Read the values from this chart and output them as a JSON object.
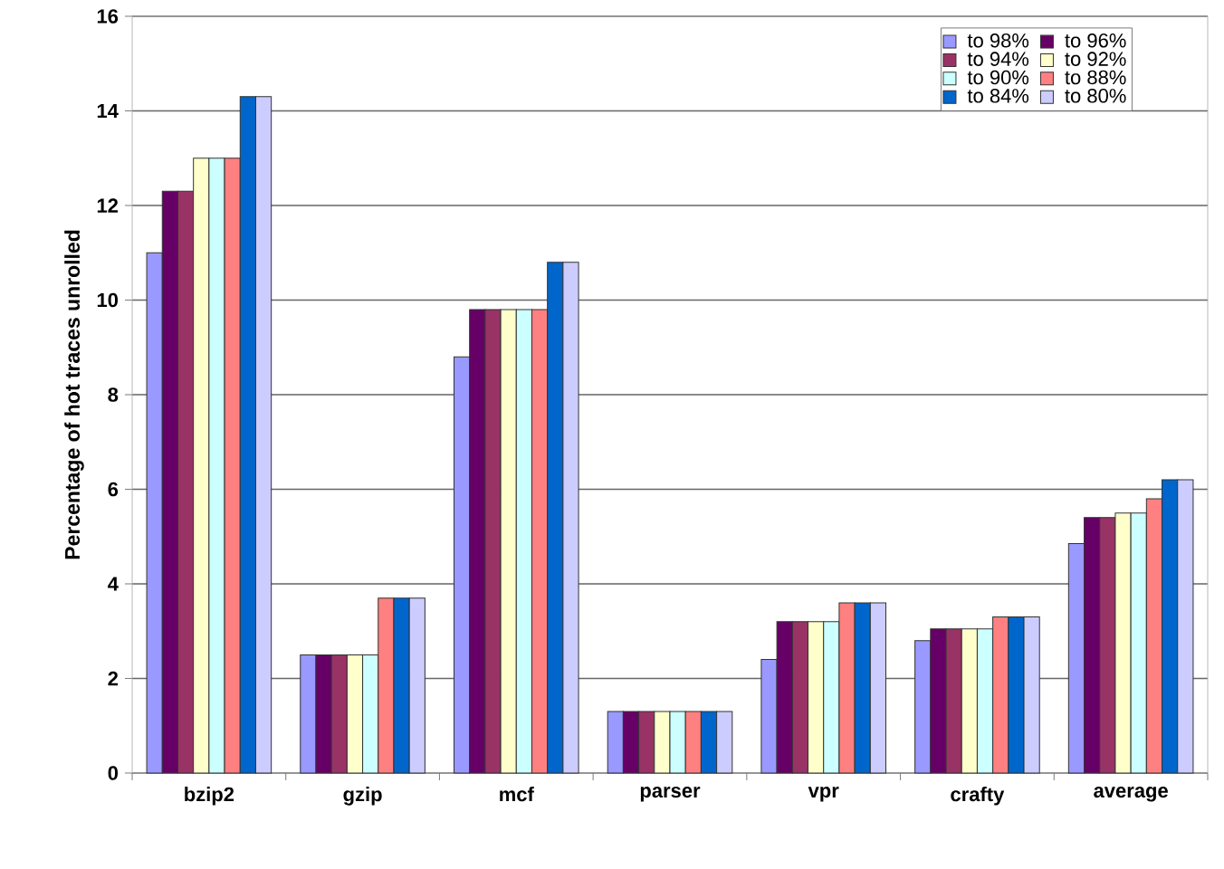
{
  "chart_data": {
    "type": "bar",
    "ylabel": "Percentage of hot traces unrolled",
    "categories": [
      "bzip2",
      "gzip",
      "mcf",
      "parser",
      "vpr",
      "crafty",
      "average"
    ],
    "series": [
      {
        "name": "to 98%",
        "color": "#9999ff",
        "values": [
          11.0,
          2.5,
          8.8,
          1.3,
          2.4,
          2.8,
          4.85
        ]
      },
      {
        "name": "to 96%",
        "color": "#660066",
        "values": [
          12.3,
          2.5,
          9.8,
          1.3,
          3.2,
          3.05,
          5.4
        ]
      },
      {
        "name": "to 94%",
        "color": "#993366",
        "values": [
          12.3,
          2.5,
          9.8,
          1.3,
          3.2,
          3.05,
          5.4
        ]
      },
      {
        "name": "to 92%",
        "color": "#ffffcc",
        "values": [
          13.0,
          2.5,
          9.8,
          1.3,
          3.2,
          3.05,
          5.5
        ]
      },
      {
        "name": "to 90%",
        "color": "#ccffff",
        "values": [
          13.0,
          2.5,
          9.8,
          1.3,
          3.2,
          3.05,
          5.5
        ]
      },
      {
        "name": "to 88%",
        "color": "#ff8080",
        "values": [
          13.0,
          3.7,
          9.8,
          1.3,
          3.6,
          3.3,
          5.8
        ]
      },
      {
        "name": "to 84%",
        "color": "#0066cc",
        "values": [
          14.3,
          3.7,
          10.8,
          1.3,
          3.6,
          3.3,
          6.2
        ]
      },
      {
        "name": "to 80%",
        "color": "#ccccff",
        "values": [
          14.3,
          3.7,
          10.8,
          1.3,
          3.6,
          3.3,
          6.2
        ]
      }
    ],
    "ylim": [
      0,
      16
    ],
    "yticks": [
      0,
      2,
      4,
      6,
      8,
      10,
      12,
      14,
      16
    ],
    "grid": "y",
    "legend": "top right"
  }
}
